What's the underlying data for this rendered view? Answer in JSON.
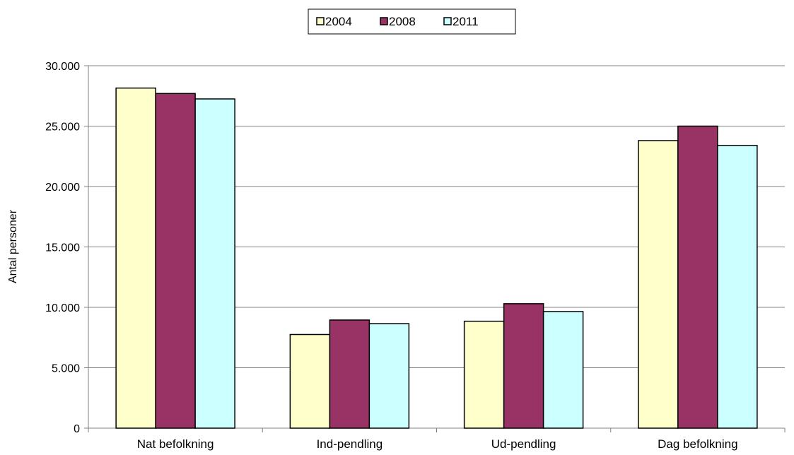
{
  "chart_data": {
    "type": "bar",
    "categories": [
      "Nat befolkning",
      "Ind-pendling",
      "Ud-pendling",
      "Dag befolkning"
    ],
    "series": [
      {
        "name": "2004",
        "values": [
          28150,
          7750,
          8850,
          23800
        ],
        "color": "#ffffcc"
      },
      {
        "name": "2008",
        "values": [
          27700,
          8950,
          10300,
          25000
        ],
        "color": "#993366"
      },
      {
        "name": "2011",
        "values": [
          27250,
          8650,
          9650,
          23400
        ],
        "color": "#ccffff"
      }
    ],
    "title": "",
    "xlabel": "",
    "ylabel": "Antal personer",
    "ylim": [
      0,
      30000
    ],
    "yticks": [
      0,
      5000,
      10000,
      15000,
      20000,
      25000,
      30000
    ],
    "ytick_labels": [
      "0",
      "5.000",
      "10.000",
      "15.000",
      "20.000",
      "25.000",
      "30.000"
    ],
    "grid": true,
    "legend_position": "top-center"
  }
}
